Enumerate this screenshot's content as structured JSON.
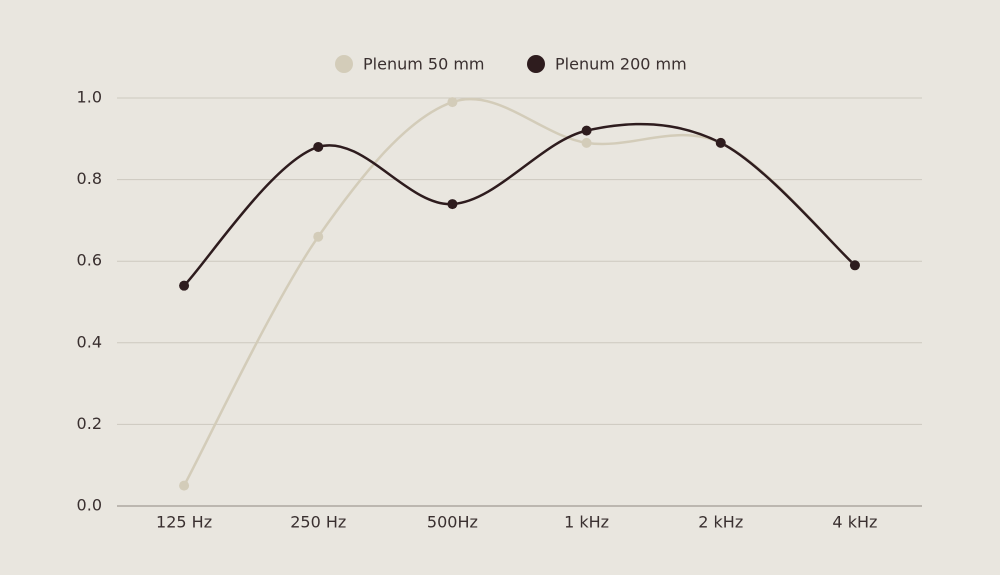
{
  "chart_data": {
    "type": "line",
    "categories": [
      "125 Hz",
      "250 Hz",
      "500Hz",
      "1 kHz",
      "2 kHz",
      "4 kHz"
    ],
    "series": [
      {
        "name": "Plenum 50 mm",
        "color": "#d3ccb9",
        "values": [
          0.05,
          0.66,
          0.99,
          0.89,
          0.89,
          0.59
        ]
      },
      {
        "name": "Plenum 200 mm",
        "color": "#2e1c1e",
        "values": [
          0.54,
          0.88,
          0.74,
          0.92,
          0.89,
          0.59
        ]
      }
    ],
    "ylim": [
      0,
      1
    ],
    "yticks": [
      {
        "value": 0,
        "label": "0.0"
      },
      0.2,
      0.4,
      0.6,
      0.8,
      {
        "value": 1,
        "label": "1.0"
      }
    ],
    "grid": true,
    "legend": "top",
    "smooth": true
  }
}
